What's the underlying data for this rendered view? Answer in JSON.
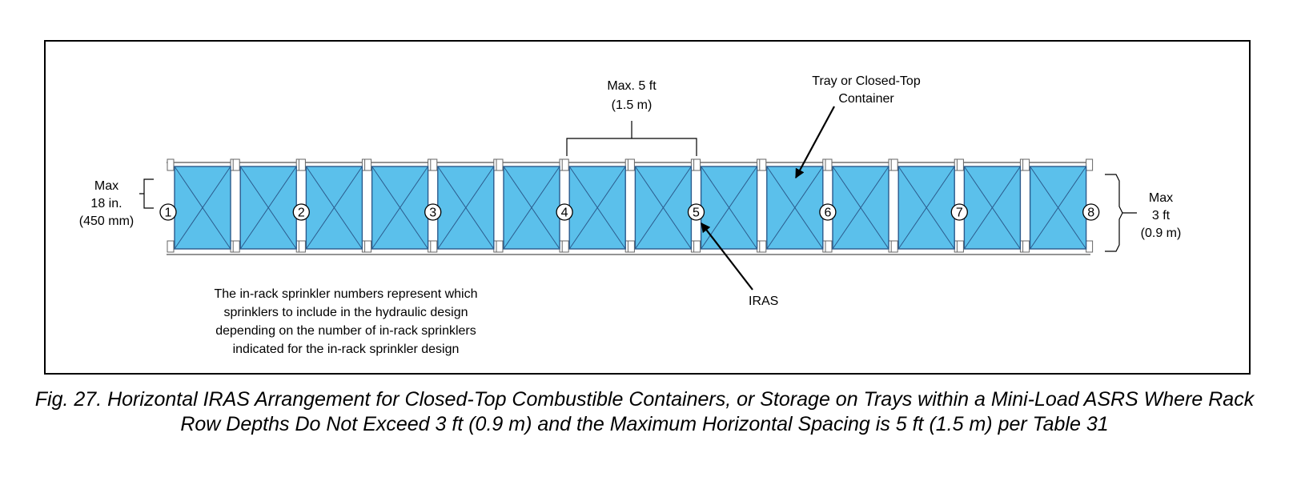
{
  "colors": {
    "container_fill": "#5bc0eb",
    "container_stroke": "#2b5a8c",
    "line": "#000000"
  },
  "container_count": 14,
  "sprinkler_numbers": [
    "1",
    "2",
    "3",
    "4",
    "5",
    "6",
    "7",
    "8"
  ],
  "labels": {
    "max_spacing": [
      "Max. 5 ft",
      "(1.5 m)"
    ],
    "tray": [
      "Tray or Closed-Top",
      "Container"
    ],
    "max_depth_left": [
      "Max",
      "18 in.",
      "(450 mm)"
    ],
    "max_depth_right": [
      "Max",
      "3 ft",
      "(0.9 m)"
    ],
    "iras": "IRAS",
    "note": [
      "The in-rack sprinkler numbers represent which",
      "sprinklers to include in the hydraulic design",
      "depending on the number of in-rack sprinklers",
      "indicated for the in-rack sprinkler design"
    ]
  },
  "caption": "Fig. 27. Horizontal IRAS Arrangement for Closed-Top Combustible Containers, or Storage on Trays within a Mini-Load ASRS Where Rack Row Depths Do Not Exceed 3 ft (0.9 m) and the Maximum Horizontal Spacing is 5 ft (1.5 m) per Table 31"
}
